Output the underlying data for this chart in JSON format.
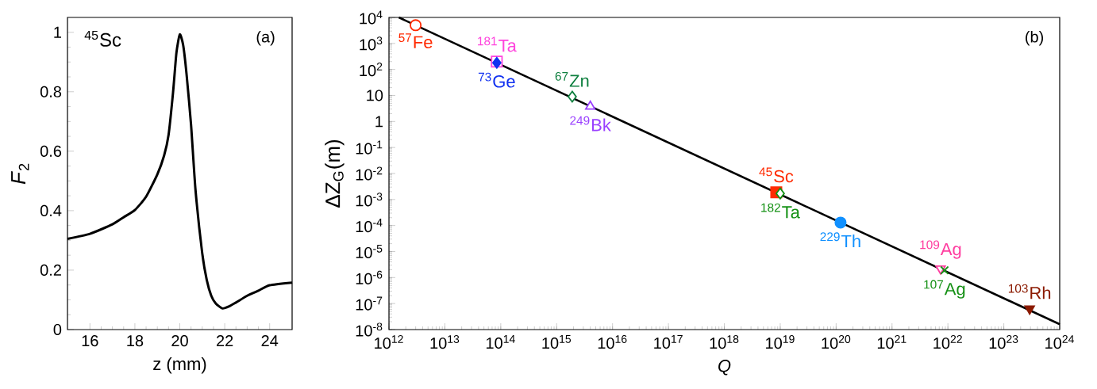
{
  "chart_data": [
    {
      "type": "line",
      "xlabel": "z (mm)",
      "ylabel": "*F*$_{2}$",
      "annotations": [
        "$^{45}$Sc",
        "(a)"
      ],
      "color": "#000000",
      "x": [
        15,
        16,
        17,
        17.5,
        18,
        18.5,
        19,
        19.3,
        19.5,
        19.7,
        19.85,
        20,
        20.15,
        20.3,
        20.5,
        20.7,
        21,
        21.2,
        21.4,
        21.6,
        21.9,
        22.2,
        22.5,
        23,
        23.5,
        24,
        25
      ],
      "values": [
        0.305,
        0.322,
        0.354,
        0.378,
        0.402,
        0.447,
        0.522,
        0.585,
        0.655,
        0.798,
        0.931,
        0.993,
        0.957,
        0.86,
        0.69,
        0.469,
        0.256,
        0.167,
        0.114,
        0.088,
        0.071,
        0.078,
        0.091,
        0.114,
        0.131,
        0.149,
        0.158
      ],
      "xlim": [
        15,
        25
      ],
      "ylim": [
        0,
        1.05
      ],
      "xticks": [
        16,
        18,
        20,
        22,
        24
      ],
      "yticks": [
        0,
        0.2,
        0.4,
        0.6,
        0.8,
        1
      ]
    },
    {
      "type": "scatter",
      "xlabel": "*Q*",
      "ylabel": "ΔZ$_{G}$(m)",
      "annotations": [
        "(b)"
      ],
      "log": "xy",
      "xlim": [
        1000000000000.0,
        1e+24
      ],
      "ylim": [
        1e-08,
        10000.0
      ],
      "xticks": [
        {
          "value": 1000000000000.0,
          "label": "10$^{12}$"
        },
        {
          "value": 10000000000000.0,
          "label": "10$^{13}$"
        },
        {
          "value": 100000000000000.0,
          "label": "10$^{14}$"
        },
        {
          "value": 1000000000000000.0,
          "label": "10$^{15}$"
        },
        {
          "value": 1e+16,
          "label": "10$^{16}$"
        },
        {
          "value": 1e+17,
          "label": "10$^{17}$"
        },
        {
          "value": 1e+18,
          "label": "10$^{18}$"
        },
        {
          "value": 1e+19,
          "label": "10$^{19}$"
        },
        {
          "value": 1e+20,
          "label": "10$^{20}$"
        },
        {
          "value": 1e+21,
          "label": "10$^{21}$"
        },
        {
          "value": 1e+22,
          "label": "10$^{22}$"
        },
        {
          "value": 1e+23,
          "label": "10$^{23}$"
        },
        {
          "value": 1e+24,
          "label": "10$^{24}$"
        }
      ],
      "yticks": [
        {
          "value": 1e-08,
          "label": "10$^{-8}$"
        },
        {
          "value": 1e-07,
          "label": "10$^{-7}$"
        },
        {
          "value": 1e-06,
          "label": "10$^{-6}$"
        },
        {
          "value": 1e-05,
          "label": "10$^{-5}$"
        },
        {
          "value": 0.0001,
          "label": "10$^{-4}$"
        },
        {
          "value": 0.001,
          "label": "10$^{-3}$"
        },
        {
          "value": 0.01,
          "label": "10$^{-2}$"
        },
        {
          "value": 0.1,
          "label": "10$^{-1}$"
        },
        1,
        10,
        {
          "value": 100,
          "label": "10$^{2}$"
        },
        {
          "value": 1000,
          "label": "10$^{3}$"
        },
        {
          "value": 10000,
          "label": "10$^{4}$"
        }
      ],
      "series": [
        {
          "type": "line",
          "color": "#000000",
          "x": [
            1500000000000.0,
            1e+24
          ],
          "values": [
            10000.0,
            1.6e-08
          ]
        },
        {
          "name": "$^{57}$Fe",
          "color": "#ff2a00",
          "marker": "circle",
          "x": [
            3000000000000.0
          ],
          "values": [
            5000.0
          ]
        },
        {
          "name": "$^{181}$Ta",
          "color": "#ff44dd",
          "marker": "square",
          "x": [
            85000000000000.0
          ],
          "values": [
            200
          ]
        },
        {
          "name": "$^{73}$Ge",
          "color": "#1030f0",
          "marker": "diamond",
          "x": [
            85000000000000.0
          ],
          "values": [
            180
          ]
        },
        {
          "name": "$^{67}$Zn",
          "color": "#108040",
          "marker": "diamond",
          "x": [
            1900000000000000.0
          ],
          "values": [
            9
          ]
        },
        {
          "name": "$^{249}$Bk",
          "color": "#9a40ff",
          "marker": "triangle",
          "x": [
            4000000000000000.0
          ],
          "values": [
            3.8
          ]
        },
        {
          "name": "$^{45}$Sc",
          "color": "#ff2a00",
          "marker": "square",
          "x": [
            8.5e+18
          ],
          "values": [
            0.0019
          ]
        },
        {
          "name": "$^{182}$Ta",
          "color": "#129012",
          "marker": "diamond",
          "x": [
            1e+19
          ],
          "values": [
            0.0017
          ]
        },
        {
          "name": "$^{229}$Th",
          "color": "#1090ff",
          "marker": "circle",
          "x": [
            1.2e+20
          ],
          "values": [
            0.00013
          ]
        },
        {
          "name": "$^{109}$Ag",
          "color": "#ff3ea0",
          "marker": "triangle_down",
          "x": [
            7.4e+21
          ],
          "values": [
            2.2e-06
          ]
        },
        {
          "name": "$^{107}$Ag",
          "color": "#159015",
          "marker": "cross",
          "x": [
            8.7e+21
          ],
          "values": [
            1.9e-06
          ]
        },
        {
          "name": "$^{103}$Rh",
          "color": "#8b1a00",
          "marker": "triangle_down",
          "x": [
            2.9e+23
          ],
          "values": [
            6.3e-08
          ]
        }
      ]
    }
  ]
}
